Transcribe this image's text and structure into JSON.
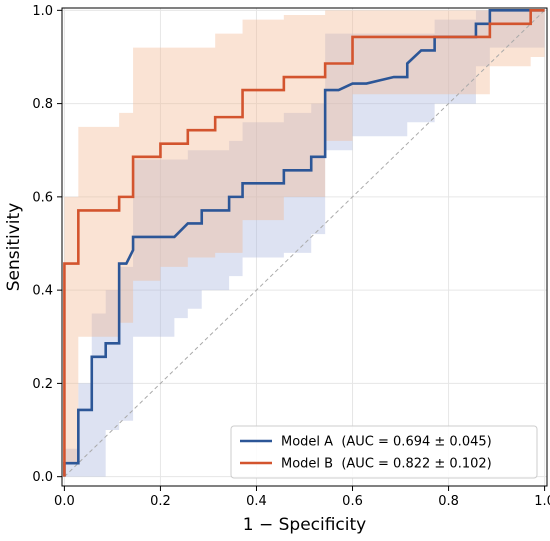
{
  "chart_data": {
    "type": "line",
    "xlabel": "1 − Specificity",
    "ylabel": "Sensitivity",
    "xlim": [
      -0.005,
      1.005
    ],
    "ylim": [
      -0.02,
      1.005
    ],
    "x_ticks": [
      "0.0",
      "0.2",
      "0.4",
      "0.6",
      "0.8",
      "1.0"
    ],
    "x_tick_values": [
      0,
      0.2,
      0.4,
      0.6,
      0.8,
      1.0
    ],
    "y_ticks": [
      "0.0",
      "0.2",
      "0.4",
      "0.6",
      "0.8",
      "1.0"
    ],
    "y_tick_values": [
      0,
      0.2,
      0.4,
      0.6,
      0.8,
      1.0
    ],
    "grid": true,
    "legend_position": "lower-right",
    "diagonal_reference": true,
    "series": [
      {
        "name": "Model A",
        "legend_label": "Model A  (AUC = 0.694 ± 0.045)",
        "color": "#2c5697",
        "band_color": "#a9b6df",
        "points": [
          [
            0,
            0
          ],
          [
            0,
            0.029
          ],
          [
            0.029,
            0.029
          ],
          [
            0.029,
            0.143
          ],
          [
            0.057,
            0.143
          ],
          [
            0.057,
            0.257
          ],
          [
            0.086,
            0.257
          ],
          [
            0.086,
            0.286
          ],
          [
            0.114,
            0.286
          ],
          [
            0.114,
            0.457
          ],
          [
            0.129,
            0.457
          ],
          [
            0.143,
            0.486
          ],
          [
            0.143,
            0.514
          ],
          [
            0.229,
            0.514
          ],
          [
            0.257,
            0.543
          ],
          [
            0.286,
            0.543
          ],
          [
            0.286,
            0.571
          ],
          [
            0.343,
            0.571
          ],
          [
            0.343,
            0.6
          ],
          [
            0.371,
            0.6
          ],
          [
            0.371,
            0.629
          ],
          [
            0.457,
            0.629
          ],
          [
            0.457,
            0.657
          ],
          [
            0.514,
            0.657
          ],
          [
            0.514,
            0.686
          ],
          [
            0.543,
            0.686
          ],
          [
            0.543,
            0.829
          ],
          [
            0.571,
            0.829
          ],
          [
            0.6,
            0.843
          ],
          [
            0.629,
            0.843
          ],
          [
            0.686,
            0.857
          ],
          [
            0.714,
            0.857
          ],
          [
            0.714,
            0.886
          ],
          [
            0.743,
            0.914
          ],
          [
            0.771,
            0.914
          ],
          [
            0.771,
            0.943
          ],
          [
            0.857,
            0.943
          ],
          [
            0.857,
            0.971
          ],
          [
            0.886,
            0.971
          ],
          [
            0.886,
            1.0
          ],
          [
            1.0,
            1.0
          ]
        ],
        "band_upper": [
          [
            0,
            0.06
          ],
          [
            0.029,
            0.2
          ],
          [
            0.057,
            0.35
          ],
          [
            0.086,
            0.4
          ],
          [
            0.114,
            0.45
          ],
          [
            0.143,
            0.68
          ],
          [
            0.229,
            0.68
          ],
          [
            0.257,
            0.7
          ],
          [
            0.343,
            0.72
          ],
          [
            0.371,
            0.76
          ],
          [
            0.457,
            0.78
          ],
          [
            0.514,
            0.8
          ],
          [
            0.543,
            0.95
          ],
          [
            0.714,
            0.95
          ],
          [
            0.771,
            0.98
          ],
          [
            0.857,
            1.0
          ],
          [
            1.0,
            1.0
          ]
        ],
        "band_lower": [
          [
            0,
            0
          ],
          [
            0.029,
            0.0
          ],
          [
            0.057,
            0.0
          ],
          [
            0.086,
            0.1
          ],
          [
            0.114,
            0.12
          ],
          [
            0.143,
            0.3
          ],
          [
            0.229,
            0.34
          ],
          [
            0.257,
            0.36
          ],
          [
            0.286,
            0.4
          ],
          [
            0.343,
            0.43
          ],
          [
            0.371,
            0.47
          ],
          [
            0.457,
            0.48
          ],
          [
            0.514,
            0.52
          ],
          [
            0.543,
            0.7
          ],
          [
            0.6,
            0.73
          ],
          [
            0.714,
            0.76
          ],
          [
            0.771,
            0.8
          ],
          [
            0.857,
            0.88
          ],
          [
            0.886,
            0.92
          ],
          [
            1.0,
            0.98
          ]
        ]
      },
      {
        "name": "Model B",
        "legend_label": "Model B  (AUC = 0.822 ± 0.102)",
        "color": "#d3542e",
        "band_color": "#f2b993",
        "points": [
          [
            0,
            0
          ],
          [
            0,
            0.457
          ],
          [
            0.029,
            0.457
          ],
          [
            0.029,
            0.571
          ],
          [
            0.114,
            0.571
          ],
          [
            0.114,
            0.6
          ],
          [
            0.143,
            0.6
          ],
          [
            0.143,
            0.686
          ],
          [
            0.2,
            0.686
          ],
          [
            0.2,
            0.714
          ],
          [
            0.257,
            0.714
          ],
          [
            0.257,
            0.743
          ],
          [
            0.314,
            0.743
          ],
          [
            0.314,
            0.771
          ],
          [
            0.371,
            0.771
          ],
          [
            0.371,
            0.829
          ],
          [
            0.457,
            0.829
          ],
          [
            0.457,
            0.857
          ],
          [
            0.543,
            0.857
          ],
          [
            0.543,
            0.886
          ],
          [
            0.6,
            0.886
          ],
          [
            0.6,
            0.943
          ],
          [
            0.886,
            0.943
          ],
          [
            0.886,
            0.971
          ],
          [
            0.971,
            0.971
          ],
          [
            0.971,
            1.0
          ],
          [
            1.0,
            1.0
          ]
        ],
        "band_upper": [
          [
            0,
            0.6
          ],
          [
            0.029,
            0.75
          ],
          [
            0.114,
            0.78
          ],
          [
            0.143,
            0.92
          ],
          [
            0.257,
            0.92
          ],
          [
            0.314,
            0.95
          ],
          [
            0.371,
            0.98
          ],
          [
            0.457,
            0.99
          ],
          [
            0.543,
            1.0
          ],
          [
            1.0,
            1.0
          ]
        ],
        "band_lower": [
          [
            0,
            0.03
          ],
          [
            0.029,
            0.3
          ],
          [
            0.114,
            0.33
          ],
          [
            0.143,
            0.42
          ],
          [
            0.2,
            0.45
          ],
          [
            0.257,
            0.47
          ],
          [
            0.314,
            0.48
          ],
          [
            0.371,
            0.55
          ],
          [
            0.457,
            0.6
          ],
          [
            0.543,
            0.72
          ],
          [
            0.6,
            0.82
          ],
          [
            0.886,
            0.88
          ],
          [
            0.971,
            0.9
          ],
          [
            1.0,
            0.9
          ]
        ]
      }
    ]
  }
}
